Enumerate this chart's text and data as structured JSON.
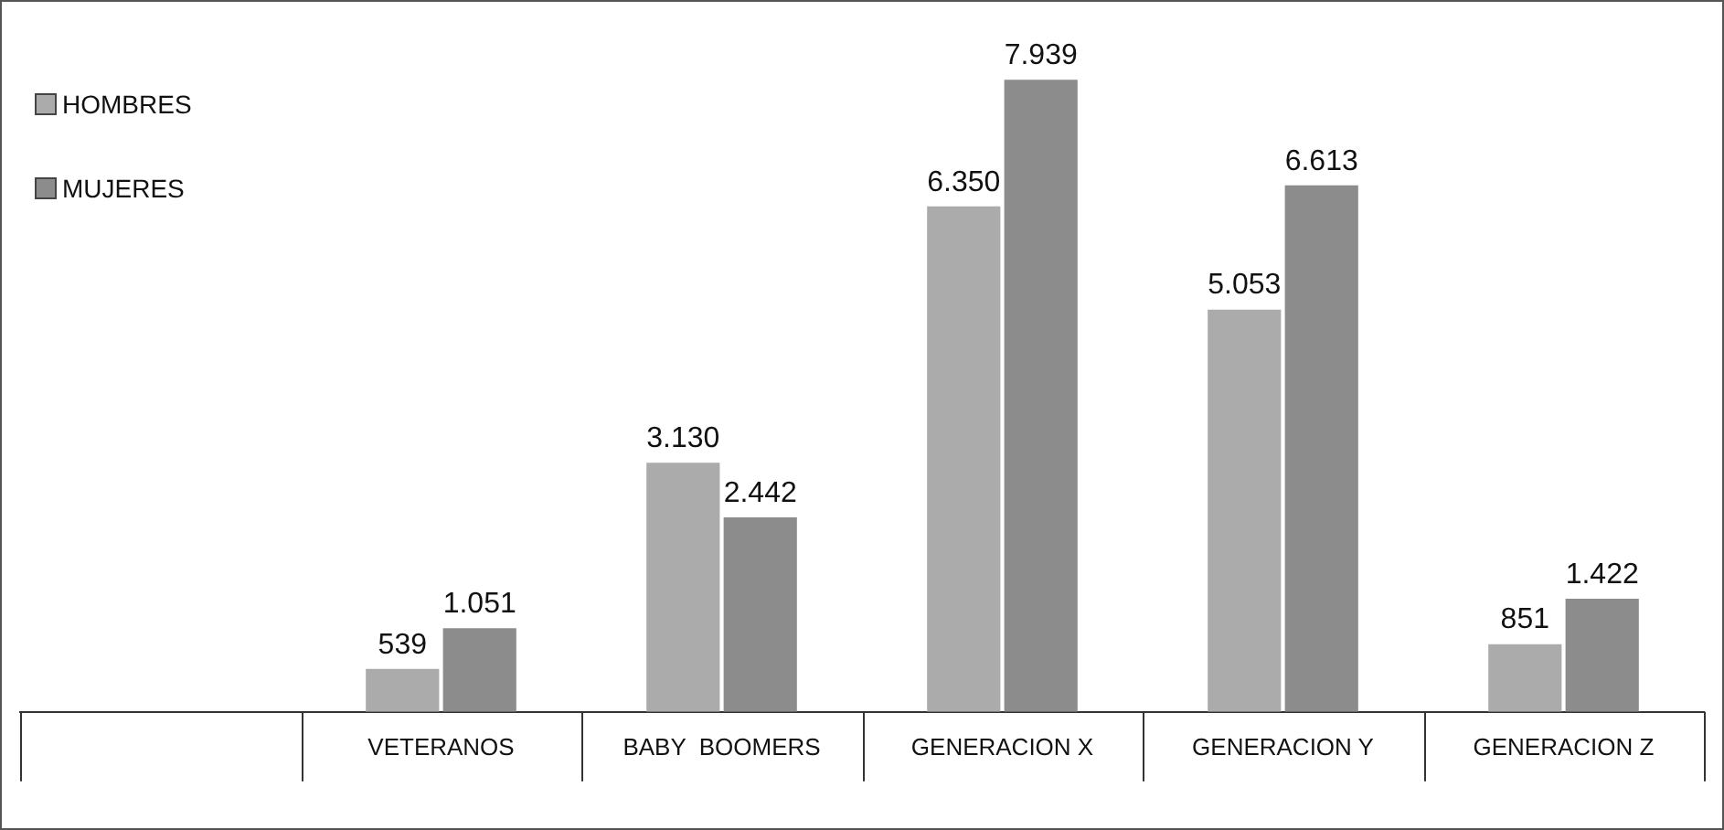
{
  "chart_data": {
    "type": "bar",
    "categories": [
      null,
      "VETERANOS",
      "BABY  BOOMERS",
      "GENERACION X",
      "GENERACION Y",
      "GENERACION Z"
    ],
    "series": [
      {
        "name": "HOMBRES",
        "color": "#ababab",
        "values": [
          null,
          539,
          3130,
          6350,
          5053,
          851
        ],
        "value_labels": [
          null,
          "539",
          "3.130",
          "6.350",
          "5.053",
          "851"
        ]
      },
      {
        "name": "MUJERES",
        "color": "#8c8c8c",
        "values": [
          null,
          1051,
          2442,
          7939,
          6613,
          1422
        ],
        "value_labels": [
          null,
          "1.051",
          "2.442",
          "7.939",
          "6.613",
          "1.422"
        ]
      }
    ],
    "legend": "top left",
    "grid": false,
    "tick_labels": "x"
  }
}
